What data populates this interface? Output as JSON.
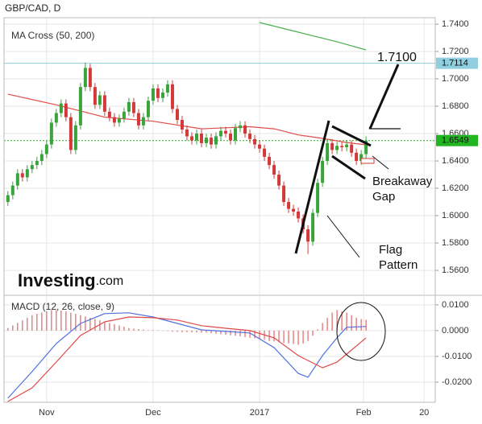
{
  "chart_data": [
    {
      "type": "candlestick",
      "title": "GBP/CAD, D",
      "subtitle": "MA Cross (50, 200)",
      "brand": {
        "name": "Investing",
        "suffix": ".com"
      },
      "up_color": "#3ba33b",
      "down_color": "#d23a3a",
      "open": [
        1.61,
        1.615,
        1.622,
        1.631,
        1.628,
        1.634,
        1.637,
        1.64,
        1.645,
        1.652,
        1.668,
        1.675,
        1.682,
        1.672,
        1.648,
        1.666,
        1.694,
        1.708,
        1.694,
        1.681,
        1.688,
        1.676,
        1.672,
        1.668,
        1.671,
        1.676,
        1.683,
        1.675,
        1.666,
        1.672,
        1.684,
        1.693,
        1.686,
        1.69,
        1.696,
        1.678,
        1.67,
        1.663,
        1.658,
        1.655,
        1.66,
        1.653,
        1.657,
        1.652,
        1.658,
        1.662,
        1.66,
        1.655,
        1.664,
        1.666,
        1.66,
        1.656,
        1.652,
        1.649,
        1.643,
        1.637,
        1.63,
        1.622,
        1.61,
        1.605,
        1.603,
        1.598,
        1.59,
        1.581,
        1.602,
        1.624,
        1.64,
        1.653,
        1.648,
        1.651,
        1.65,
        1.652,
        1.646,
        1.64,
        1.645
      ],
      "high": [
        1.618,
        1.625,
        1.634,
        1.634,
        1.637,
        1.64,
        1.643,
        1.648,
        1.655,
        1.671,
        1.678,
        1.685,
        1.685,
        1.675,
        1.669,
        1.697,
        1.712,
        1.711,
        1.697,
        1.691,
        1.691,
        1.679,
        1.675,
        1.674,
        1.679,
        1.686,
        1.686,
        1.678,
        1.675,
        1.687,
        1.696,
        1.696,
        1.693,
        1.699,
        1.699,
        1.681,
        1.673,
        1.666,
        1.661,
        1.663,
        1.663,
        1.66,
        1.66,
        1.661,
        1.665,
        1.665,
        1.663,
        1.667,
        1.669,
        1.669,
        1.663,
        1.659,
        1.655,
        1.652,
        1.646,
        1.64,
        1.633,
        1.625,
        1.613,
        1.608,
        1.606,
        1.601,
        1.593,
        1.605,
        1.627,
        1.643,
        1.656,
        1.656,
        1.654,
        1.654,
        1.655,
        1.655,
        1.649,
        1.648,
        1.658
      ],
      "low": [
        1.607,
        1.612,
        1.619,
        1.625,
        1.625,
        1.631,
        1.634,
        1.637,
        1.642,
        1.649,
        1.665,
        1.672,
        1.669,
        1.645,
        1.645,
        1.663,
        1.691,
        1.691,
        1.678,
        1.678,
        1.673,
        1.669,
        1.665,
        1.665,
        1.668,
        1.673,
        1.672,
        1.663,
        1.663,
        1.669,
        1.681,
        1.683,
        1.683,
        1.687,
        1.675,
        1.667,
        1.66,
        1.655,
        1.652,
        1.652,
        1.65,
        1.65,
        1.649,
        1.649,
        1.655,
        1.657,
        1.652,
        1.652,
        1.661,
        1.657,
        1.653,
        1.649,
        1.646,
        1.64,
        1.634,
        1.627,
        1.619,
        1.607,
        1.602,
        1.6,
        1.595,
        1.587,
        1.572,
        1.578,
        1.599,
        1.621,
        1.637,
        1.645,
        1.645,
        1.647,
        1.647,
        1.643,
        1.637,
        1.637,
        1.642
      ],
      "close": [
        1.615,
        1.622,
        1.631,
        1.628,
        1.634,
        1.637,
        1.64,
        1.645,
        1.652,
        1.668,
        1.675,
        1.682,
        1.672,
        1.648,
        1.666,
        1.694,
        1.708,
        1.694,
        1.681,
        1.688,
        1.676,
        1.672,
        1.668,
        1.671,
        1.676,
        1.683,
        1.675,
        1.666,
        1.672,
        1.684,
        1.693,
        1.686,
        1.69,
        1.696,
        1.678,
        1.67,
        1.663,
        1.658,
        1.655,
        1.66,
        1.653,
        1.657,
        1.652,
        1.658,
        1.662,
        1.66,
        1.655,
        1.664,
        1.666,
        1.66,
        1.656,
        1.652,
        1.649,
        1.643,
        1.637,
        1.63,
        1.622,
        1.61,
        1.605,
        1.603,
        1.598,
        1.59,
        1.581,
        1.602,
        1.624,
        1.64,
        1.653,
        1.648,
        1.651,
        1.65,
        1.652,
        1.646,
        1.64,
        1.645,
        1.6549
      ],
      "series": [
        {
          "color": "#e24b4b",
          "x": [
            0,
            10,
            20,
            30,
            40,
            50,
            55,
            60,
            65,
            70,
            74
          ],
          "values": [
            1.6888,
            1.681,
            1.672,
            1.669,
            1.6635,
            1.665,
            1.6635,
            1.659,
            1.6565,
            1.6535,
            1.6518
          ]
        },
        {
          "color": "#4caf50",
          "x": [
            52,
            60,
            68,
            74
          ],
          "values": [
            1.7412,
            1.7341,
            1.7271,
            1.7212
          ]
        }
      ],
      "hlines": [
        {
          "value": 1.7114,
          "color": "#8fcfe0"
        },
        {
          "value": 1.6549,
          "color": "#22b522"
        }
      ],
      "annotations": [
        {
          "lines": [
            "1.7100"
          ]
        },
        {
          "lines": [
            "Breakaway",
            "Gap"
          ]
        },
        {
          "lines": [
            "Flag",
            "Pattern"
          ]
        }
      ],
      "xlim": [
        -0.8,
        88.3
      ],
      "xticks": [
        {
          "value": 8,
          "label": "Nov"
        },
        {
          "value": 30,
          "label": "Dec"
        },
        {
          "value": 52,
          "label": "2017"
        },
        {
          "value": 73.5,
          "label": "Feb"
        },
        {
          "value": 86,
          "label": "20"
        }
      ],
      "ylim": [
        1.5424,
        1.7447
      ],
      "yticks": [
        {
          "value": 1.74,
          "label": "1.7400"
        },
        {
          "value": 1.72,
          "label": "1.7200"
        },
        {
          "value": 1.7,
          "label": "1.7000"
        },
        {
          "value": 1.68,
          "label": "1.6800"
        },
        {
          "value": 1.66,
          "label": "1.6600"
        },
        {
          "value": 1.64,
          "label": "1.6400"
        },
        {
          "value": 1.62,
          "label": "1.6200"
        },
        {
          "value": 1.6,
          "label": "1.6000"
        },
        {
          "value": 1.58,
          "label": "1.5800"
        },
        {
          "value": 1.56,
          "label": "1.5600"
        }
      ],
      "grid": true
    },
    {
      "type": "macd",
      "title": "MACD (12, 26, close, 9)",
      "histogram": {
        "color": "#e06666",
        "values": [
          0.001,
          0.002,
          0.003,
          0.004,
          0.005,
          0.006,
          0.0065,
          0.007,
          0.0075,
          0.008,
          0.008,
          0.0078,
          0.0075,
          0.007,
          0.0065,
          0.006,
          0.0055,
          0.005,
          0.0045,
          0.004,
          0.0035,
          0.003,
          0.0025,
          0.002,
          0.0015,
          0.001,
          0.0008,
          0.0006,
          0.0004,
          0.0002,
          0.0002,
          0.0001,
          0,
          -0.0002,
          -0.0004,
          -0.0005,
          -0.0006,
          -0.0006,
          -0.0007,
          -0.0007,
          -0.0008,
          -0.0008,
          -0.001,
          -0.0012,
          -0.0014,
          -0.0016,
          -0.0018,
          -0.002,
          -0.0022,
          -0.0025,
          -0.0028,
          -0.003,
          -0.0033,
          -0.0036,
          -0.004,
          -0.0042,
          -0.0045,
          -0.0048,
          -0.005,
          -0.0052,
          -0.0055,
          -0.005,
          -0.004,
          -0.002,
          0.0005,
          0.003,
          0.005,
          0.007,
          0.008,
          0.0075,
          0.007,
          0.006,
          0.005,
          0.0045,
          0.0042
        ]
      },
      "series": [
        {
          "color": "#4f6fe0",
          "x": [
            0,
            5,
            10,
            15,
            20,
            25,
            30,
            35,
            40,
            45,
            50,
            55,
            60,
            62,
            65,
            68,
            70,
            74
          ],
          "values": [
            -0.0262,
            -0.0159,
            -0.005,
            0.0028,
            0.0066,
            0.0069,
            0.0053,
            0.0028,
            0.0003,
            -0.0003,
            -0.0009,
            -0.0066,
            -0.0166,
            -0.0181,
            -0.0097,
            -0.0028,
            0.0013,
            0.0016
          ]
        },
        {
          "color": "#e04848",
          "x": [
            0,
            5,
            10,
            15,
            20,
            25,
            30,
            35,
            40,
            45,
            50,
            55,
            60,
            65,
            68,
            70,
            74
          ],
          "values": [
            -0.0275,
            -0.0222,
            -0.0122,
            -0.0019,
            0.0034,
            0.0053,
            0.005,
            0.0041,
            0.0019,
            0.0009,
            0,
            -0.0028,
            -0.0097,
            -0.0144,
            -0.0122,
            -0.0091,
            -0.0028
          ]
        }
      ],
      "ylim": [
        -0.0278,
        0.0134
      ],
      "yticks": [
        {
          "value": 0.01,
          "label": "0.0100"
        },
        {
          "value": 0,
          "label": "0.0000"
        },
        {
          "value": -0.01,
          "label": "-0.0100"
        },
        {
          "value": -0.02,
          "label": "-0.0200"
        }
      ],
      "grid": true
    }
  ]
}
